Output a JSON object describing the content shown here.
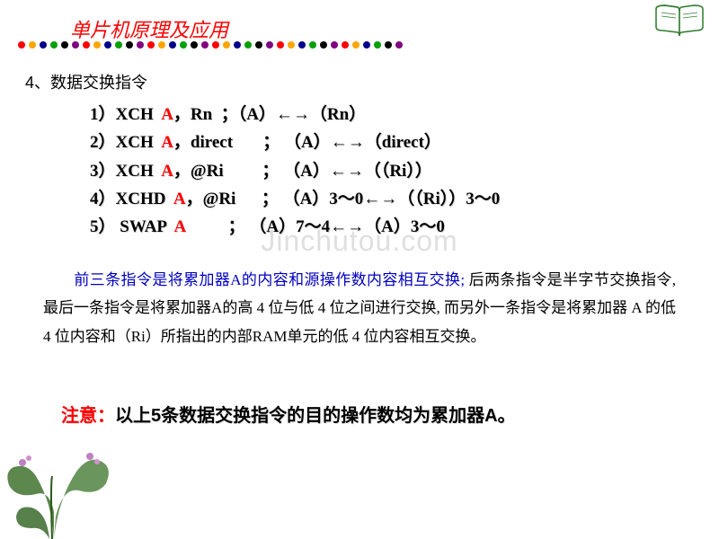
{
  "header": {
    "title": "单片机原理及应用",
    "divider_colors": [
      "#ff0000",
      "#ffa500",
      "#00008b",
      "#00a000",
      "#000000",
      "#800080",
      "#ff0000",
      "#ffa500",
      "#00008b",
      "#00a000",
      "#000000",
      "#800080",
      "#ff0000",
      "#ffa500",
      "#00008b",
      "#00a000",
      "#000000",
      "#800080",
      "#ff0000",
      "#ffa500",
      "#00008b",
      "#00a000",
      "#000000",
      "#800080",
      "#ff0000",
      "#ffa500",
      "#00008b",
      "#00a000",
      "#000000",
      "#800080",
      "#ff0000",
      "#ffa500",
      "#00008b",
      "#00a000",
      "#000000",
      "#800080"
    ]
  },
  "section": {
    "heading": "4、数据交换指令"
  },
  "instructions": {
    "lines": [
      {
        "num": "1）",
        "op": "XCH  ",
        "a": "A",
        "rest": "，Rn  ；（A）←→（Rn）"
      },
      {
        "num": "2）",
        "op": "XCH  ",
        "a": "A",
        "rest": "，direct       ； （A）←→（direct）"
      },
      {
        "num": "3）",
        "op": "XCH  ",
        "a": "A",
        "rest": "，@Ri         ； （A）←→（（Ri））"
      },
      {
        "num": "4）",
        "op": "XCHD  ",
        "a": "A",
        "rest": "，@Ri      ； （A）3～0←→（（Ri））3～0"
      },
      {
        "num": "5）",
        "op": " SWAP  ",
        "a": "A",
        "rest": "          ； （A）7～4←→（A）3～0"
      }
    ]
  },
  "explain": {
    "part1": "前三条指令是将累加器A的内容和源操作数内容相互交换; ",
    "part2": "后两条指令是半字节交换指令, 最后一条指令是将累加器A的高 4 位与低 4 位之间进行交换, ",
    "part3": "而另外一条指令是将累加器 A 的低 4 位内容和（Ri）所指出的内部RAM单元的低  4 位内容相互交换。"
  },
  "note": {
    "label": "注意：",
    "text": "以上5条数据交换指令的目的操作数均为累加器A。"
  },
  "watermark": "Jinchutou.com"
}
